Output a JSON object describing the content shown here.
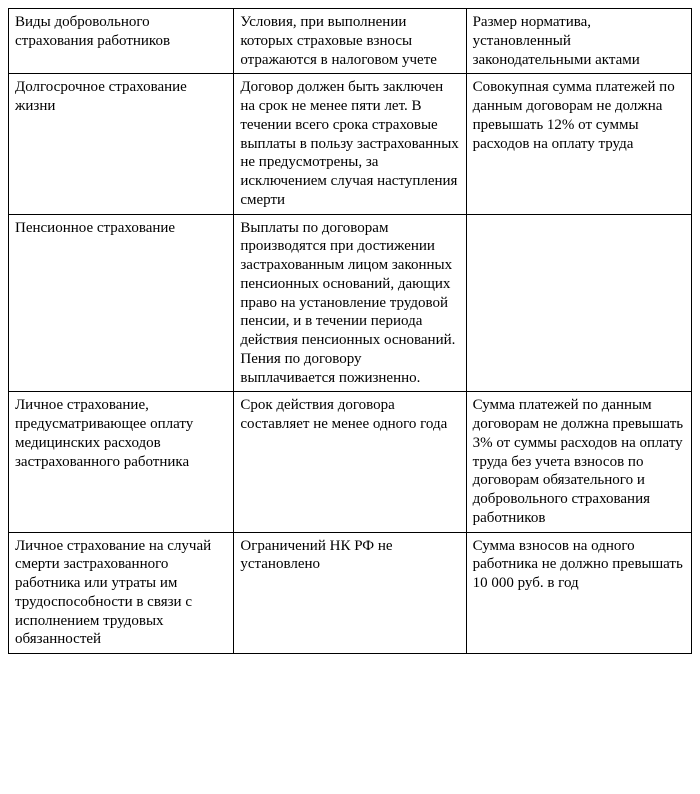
{
  "table": {
    "type": "table",
    "background_color": "#ffffff",
    "border_color": "#000000",
    "font_family": "Times New Roman",
    "font_size": 15,
    "columns": [
      {
        "width_pct": 33
      },
      {
        "width_pct": 34
      },
      {
        "width_pct": 33
      }
    ],
    "rows": [
      [
        "Виды добровольного страхования работников",
        "Условия, при выполнении которых страховые взносы отражаются в налоговом учете",
        "Размер норматива, установленный законодательными актами"
      ],
      [
        "Долгосрочное страхование жизни",
        "Договор должен быть заключен на срок не менее пяти лет. В течении всего срока страховые выплаты в пользу застрахованных не предусмотрены, за исключением случая наступления смерти",
        "Совокупная сумма платежей по данным договорам не должна превышать 12% от суммы расходов на оплату труда"
      ],
      [
        "Пенсионное страхование",
        "Выплаты по договорам производятся при достижении застрахованным лицом законных пенсионных оснований, дающих право на установление трудовой пенсии, и в течении периода действия пенсионных оснований. Пения по договору выплачивается пожизненно.",
        ""
      ],
      [
        "Личное страхование, предусматривающее оплату медицинских расходов застрахованного работника",
        "Срок действия договора составляет не менее одного года",
        "Сумма платежей по данным договорам не должна превышать 3% от суммы расходов на оплату труда без учета взносов по договорам обязательного и добровольного страхования работников"
      ],
      [
        "Личное страхование на случай смерти застрахованного работника или утраты им трудоспособности в связи с исполнением трудовых обязанностей",
        "Ограничений НК РФ не установлено",
        "Сумма взносов на одного работника не должно превышать 10 000 руб. в год"
      ]
    ]
  }
}
